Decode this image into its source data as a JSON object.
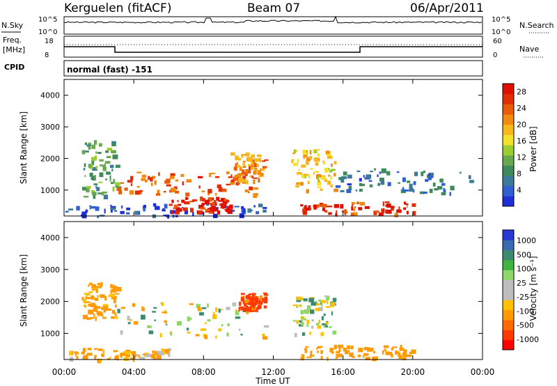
{
  "header": {
    "station": "Kerguelen (fitACF)",
    "beam": "Beam 07",
    "date": "06/Apr/2011"
  },
  "top_panels": {
    "nsky_label": "N.Sky",
    "nsky_ticks": [
      "10^5",
      "10^0"
    ],
    "nsearch_label": "N.Search",
    "nsearch_ticks": [
      "10^5",
      "10^0"
    ],
    "freq_label_1": "Freq.",
    "freq_label_2": "[MHz]",
    "freq_ticks": [
      "18",
      "8"
    ],
    "nave_label": "Nave",
    "nave_ticks": [
      "60",
      "0"
    ],
    "cpid_label": "CPID",
    "cpid_value": "normal (fast) -151"
  },
  "colors": {
    "power_scale": [
      "#1f2fd8",
      "#2f5fd0",
      "#3c7a9a",
      "#3f8a5a",
      "#6aa84f",
      "#9acd32",
      "#f2e22a",
      "#f6b81d",
      "#f08a12",
      "#e85c0a",
      "#e22e06",
      "#dd0f00"
    ],
    "velocity_scale": [
      "#ff0000",
      "#ff3a00",
      "#ff6a00",
      "#ff9a00",
      "#ffc000",
      "#bdbdbd",
      "#bdbdbd",
      "#8fd66b",
      "#3fb23f",
      "#3c8a70",
      "#3a6ab0",
      "#2a3ad0"
    ]
  },
  "chart_data": [
    {
      "type": "heatmap",
      "name": "power",
      "ylabel": "Slant Range [km]",
      "xlabel": "Time UT",
      "x_ticks": [
        "00:00",
        "04:00",
        "08:00",
        "12:00",
        "16:00",
        "20:00",
        "00:00"
      ],
      "x_range_hours": [
        0,
        24
      ],
      "y_range": [
        180,
        4500
      ],
      "y_ticks": [
        1000,
        2000,
        3000,
        4000
      ],
      "colorbar": {
        "label": "Power [dB]",
        "ticks": [
          4,
          8,
          12,
          16,
          20,
          24,
          28
        ],
        "range": [
          0,
          30
        ]
      },
      "features": [
        {
          "t0": 0.0,
          "t1": 11.5,
          "r0": 200,
          "r1": 600,
          "value": 3
        },
        {
          "t0": 3.0,
          "t1": 11.0,
          "r0": 900,
          "r1": 1600,
          "value": 24
        },
        {
          "t0": 6.0,
          "t1": 9.5,
          "r0": 350,
          "r1": 800,
          "value": 28
        },
        {
          "t0": 9.5,
          "t1": 11.5,
          "r0": 1300,
          "r1": 2200,
          "value": 22
        },
        {
          "t0": 13.5,
          "t1": 20.0,
          "r0": 250,
          "r1": 650,
          "value": 26
        },
        {
          "t0": 13.0,
          "t1": 15.5,
          "r0": 1000,
          "r1": 2300,
          "value": 18
        },
        {
          "t0": 1.0,
          "t1": 3.0,
          "r0": 800,
          "r1": 2600,
          "value": 10
        },
        {
          "t0": 15.5,
          "t1": 23.5,
          "r0": 900,
          "r1": 1700,
          "value": 6
        }
      ]
    },
    {
      "type": "heatmap",
      "name": "velocity",
      "ylabel": "Slant Range [km]",
      "xlabel": "Time UT",
      "x_ticks": [
        "00:00",
        "04:00",
        "08:00",
        "12:00",
        "16:00",
        "20:00",
        "00:00"
      ],
      "x_range_hours": [
        0,
        24
      ],
      "y_range": [
        180,
        4500
      ],
      "y_ticks": [
        1000,
        2000,
        3000,
        4000
      ],
      "colorbar": {
        "label": "Velocity [m s⁻¹]",
        "ticks": [
          "1000",
          "500",
          "100",
          "25",
          "-25",
          "-100",
          "-500",
          "-1000"
        ]
      },
      "features": [
        {
          "t0": 3.0,
          "t1": 11.5,
          "r0": 900,
          "r1": 2000,
          "value": 0
        },
        {
          "t0": 0.0,
          "t1": 6.0,
          "r0": 200,
          "r1": 550,
          "value": -150
        },
        {
          "t0": 13.5,
          "t1": 20.0,
          "r0": 250,
          "r1": 650,
          "value": -300
        },
        {
          "t0": 10.0,
          "t1": 11.5,
          "r0": 1800,
          "r1": 2300,
          "value": -600
        },
        {
          "t0": 13.0,
          "t1": 15.5,
          "r0": 1000,
          "r1": 2200,
          "value": 60
        },
        {
          "t0": 1.0,
          "t1": 3.0,
          "r0": 1500,
          "r1": 2600,
          "value": -200
        }
      ]
    }
  ]
}
